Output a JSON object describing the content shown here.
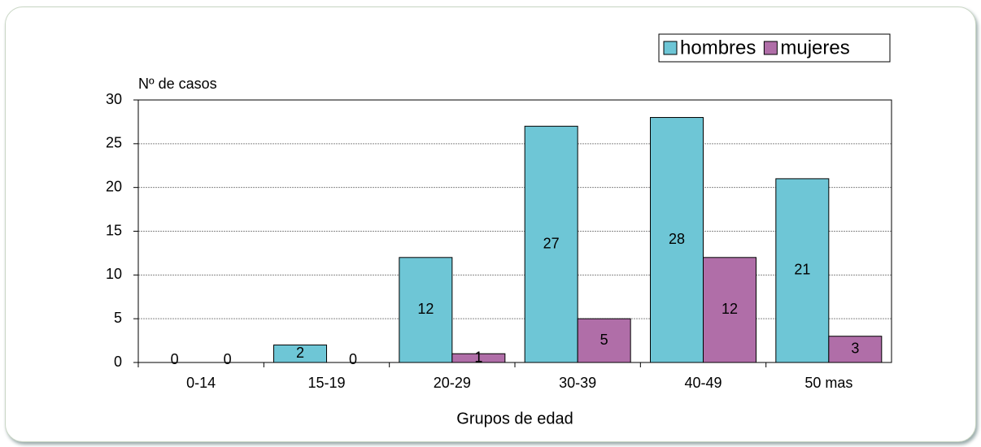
{
  "chart_data": {
    "type": "bar",
    "y_label": "Nº de casos",
    "x_label": "Grupos de edad",
    "categories": [
      "0-14",
      "15-19",
      "20-29",
      "30-39",
      "40-49",
      "50 mas"
    ],
    "series": [
      {
        "name": "hombres",
        "color": "#6ec6d6",
        "values": [
          0,
          2,
          12,
          27,
          28,
          21
        ]
      },
      {
        "name": "mujeres",
        "color": "#b06ea8",
        "values": [
          0,
          0,
          1,
          5,
          12,
          3
        ]
      }
    ],
    "ylim": [
      0,
      30
    ],
    "yticks": [
      0,
      5,
      10,
      15,
      20,
      25,
      30
    ],
    "grid": true,
    "legend": "top-right"
  }
}
